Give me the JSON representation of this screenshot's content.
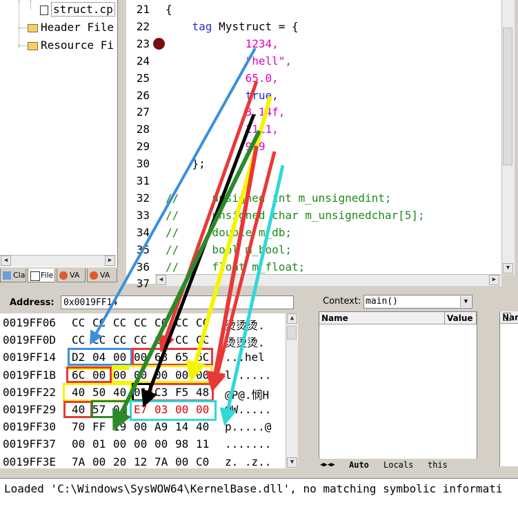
{
  "tree": {
    "items": [
      {
        "label": "struct.cp",
        "kind": "file"
      },
      {
        "label": "Header File",
        "kind": "folder"
      },
      {
        "label": "Resource Fi",
        "kind": "folder"
      }
    ]
  },
  "panel_tabs": [
    "Cla",
    "File",
    "VA",
    "VA"
  ],
  "editor": {
    "lines": [
      {
        "n": "21",
        "text": "{"
      },
      {
        "n": "22",
        "text": "    tag Mystruct = {"
      },
      {
        "n": "23",
        "text": "            1234,"
      },
      {
        "n": "24",
        "text": "            \"hell\","
      },
      {
        "n": "25",
        "text": "            65.0,"
      },
      {
        "n": "26",
        "text": "            true,"
      },
      {
        "n": "27",
        "text": "            3.14f,"
      },
      {
        "n": "28",
        "text": "            1111,"
      },
      {
        "n": "29",
        "text": "            999"
      },
      {
        "n": "30",
        "text": "    };"
      },
      {
        "n": "31",
        "text": ""
      },
      {
        "n": "32",
        "text": "//     unsigned int m_unsignedint;"
      },
      {
        "n": "33",
        "text": "//     unsigned char m_unsignedchar[5];"
      },
      {
        "n": "34",
        "text": "//     double m_db;"
      },
      {
        "n": "35",
        "text": "//     bool m_bool;"
      },
      {
        "n": "36",
        "text": "//     float m_float;"
      },
      {
        "n": "37",
        "text": ""
      }
    ]
  },
  "memory": {
    "address_label": "Address:",
    "address_value": "0x0019FF14",
    "rows": [
      {
        "addr": "0019FF06",
        "bytes": [
          "CC",
          "CC",
          "CC",
          "CC",
          "CC",
          "CC",
          "CC"
        ],
        "ascii": "烫烫烫."
      },
      {
        "addr": "0019FF0D",
        "bytes": [
          "CC",
          "CC",
          "CC",
          "CC",
          "CC",
          "CC",
          "CC"
        ],
        "ascii": "烫烫烫."
      },
      {
        "addr": "0019FF14",
        "bytes": [
          "D2",
          "04",
          "00",
          "00",
          "68",
          "65",
          "6C"
        ],
        "ascii": "...hel"
      },
      {
        "addr": "0019FF1B",
        "bytes": [
          "6C",
          "00",
          "00",
          "00",
          "00",
          "00",
          "00"
        ],
        "ascii": "l......"
      },
      {
        "addr": "0019FF22",
        "bytes": [
          "40",
          "50",
          "40",
          "01",
          "C3",
          "F5",
          "48"
        ],
        "ascii": "@P@.悯H"
      },
      {
        "addr": "0019FF29",
        "bytes": [
          "40",
          "57",
          "04",
          "E7",
          "03",
          "00",
          "00"
        ],
        "ascii": "@W....."
      },
      {
        "addr": "0019FF30",
        "bytes": [
          "70",
          "FF",
          "19",
          "00",
          "A9",
          "14",
          "40"
        ],
        "ascii": "p.....@"
      },
      {
        "addr": "0019FF37",
        "bytes": [
          "00",
          "01",
          "00",
          "00",
          "00",
          "98",
          "11"
        ],
        "ascii": "......."
      },
      {
        "addr": "0019FF3E",
        "bytes": [
          "7A",
          "00",
          "20",
          "12",
          "7A",
          "00",
          "C0"
        ],
        "ascii": "z. .z.."
      }
    ]
  },
  "context": {
    "label": "Context:",
    "value": "main()",
    "columns": [
      "Name",
      "Value"
    ],
    "tabs": [
      "Auto",
      "Locals",
      "this"
    ]
  },
  "watch": {
    "column": "Nam"
  },
  "output": {
    "text": "Loaded 'C:\\Windows\\SysWOW64\\KernelBase.dll', no matching symbolic informati"
  },
  "colors": {
    "blue": "#3a8fe0",
    "red": "#e83838",
    "yellow": "#f5f500",
    "black": "#000000",
    "green": "#2a8a2a",
    "cyan": "#30d8d8",
    "changed_bytes": "#e00000"
  }
}
